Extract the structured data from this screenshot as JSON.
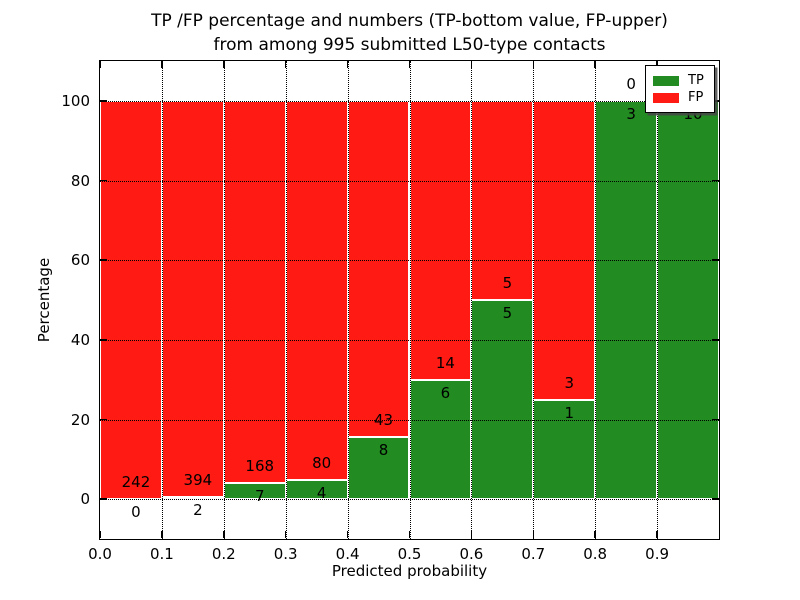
{
  "title": {
    "line1": "TP /FP percentage and numbers (TP-bottom value, FP-upper)",
    "line2": "from among 995 submitted L50-type contacts"
  },
  "axes": {
    "xlabel": "Predicted probability",
    "ylabel": "Percentage"
  },
  "colors": {
    "tp": "#228b22",
    "fp": "#ff1a14",
    "background": "#ffffff",
    "grid": "#000000",
    "bar_edge": "#ffffff"
  },
  "legend": {
    "position": "upper-right",
    "items": [
      {
        "label": "TP",
        "color": "#228b22"
      },
      {
        "label": "FP",
        "color": "#ff1a14"
      }
    ]
  },
  "chart_data": {
    "type": "bar",
    "stacked": true,
    "title": "TP /FP percentage and numbers (TP-bottom value, FP-upper) from among 995 submitted L50-type contacts",
    "xlabel": "Predicted probability",
    "ylabel": "Percentage",
    "xlim": [
      0.0,
      1.0
    ],
    "ylim": [
      -10,
      110
    ],
    "xticks": [
      "0.0",
      "0.1",
      "0.2",
      "0.3",
      "0.4",
      "0.5",
      "0.6",
      "0.7",
      "0.8",
      "0.9"
    ],
    "yticks": [
      "0",
      "20",
      "40",
      "60",
      "80",
      "100"
    ],
    "grid": true,
    "legend_entries": [
      "TP",
      "FP"
    ],
    "total_contacts": 995,
    "bins": [
      {
        "x_start": 0.0,
        "x_end": 0.1,
        "tp": 0,
        "fp": 242,
        "tp_pct": 0.0,
        "fp_pct": 100.0
      },
      {
        "x_start": 0.1,
        "x_end": 0.2,
        "tp": 2,
        "fp": 394,
        "tp_pct": 0.5,
        "fp_pct": 99.5
      },
      {
        "x_start": 0.2,
        "x_end": 0.3,
        "tp": 7,
        "fp": 168,
        "tp_pct": 4.0,
        "fp_pct": 96.0
      },
      {
        "x_start": 0.3,
        "x_end": 0.4,
        "tp": 4,
        "fp": 80,
        "tp_pct": 4.8,
        "fp_pct": 95.2
      },
      {
        "x_start": 0.4,
        "x_end": 0.5,
        "tp": 8,
        "fp": 43,
        "tp_pct": 15.7,
        "fp_pct": 84.3
      },
      {
        "x_start": 0.5,
        "x_end": 0.6,
        "tp": 6,
        "fp": 14,
        "tp_pct": 30.0,
        "fp_pct": 70.0
      },
      {
        "x_start": 0.6,
        "x_end": 0.7,
        "tp": 5,
        "fp": 5,
        "tp_pct": 50.0,
        "fp_pct": 50.0
      },
      {
        "x_start": 0.7,
        "x_end": 0.8,
        "tp": 1,
        "fp": 3,
        "tp_pct": 25.0,
        "fp_pct": 75.0
      },
      {
        "x_start": 0.8,
        "x_end": 0.9,
        "tp": 3,
        "fp": 0,
        "tp_pct": 100.0,
        "fp_pct": 0.0
      },
      {
        "x_start": 0.9,
        "x_end": 1.0,
        "tp": 10,
        "fp": 0,
        "tp_pct": 100.0,
        "fp_pct": 0.0
      }
    ]
  }
}
